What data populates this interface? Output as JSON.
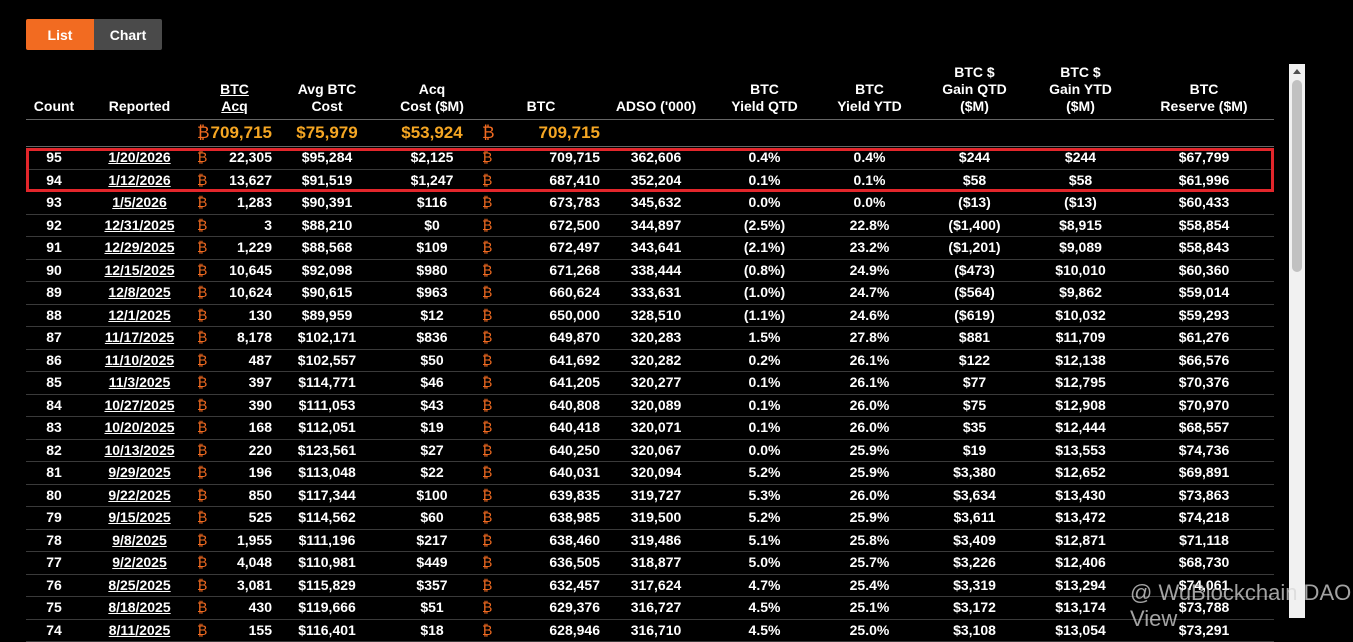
{
  "tabs": {
    "list_label": "List",
    "chart_label": "Chart",
    "active": "List"
  },
  "columns": [
    {
      "key": "count",
      "label": [
        "Count"
      ]
    },
    {
      "key": "reported",
      "label": [
        "Reported"
      ]
    },
    {
      "key": "btc_acq",
      "label": [
        "BTC",
        "Acq"
      ]
    },
    {
      "key": "avg_cost",
      "label": [
        "Avg BTC",
        "Cost"
      ]
    },
    {
      "key": "acq_cost",
      "label": [
        "Acq",
        "Cost ($M)"
      ]
    },
    {
      "key": "btc",
      "label": [
        "BTC"
      ]
    },
    {
      "key": "adso",
      "label": [
        "ADSO ('000)"
      ]
    },
    {
      "key": "yield_qtd",
      "label": [
        "BTC",
        "Yield QTD"
      ]
    },
    {
      "key": "yield_ytd",
      "label": [
        "BTC",
        "Yield YTD"
      ]
    },
    {
      "key": "gain_qtd",
      "label": [
        "BTC $",
        "Gain QTD",
        "($M)"
      ]
    },
    {
      "key": "gain_ytd",
      "label": [
        "BTC $",
        "Gain YTD",
        "($M)"
      ]
    },
    {
      "key": "reserve",
      "label": [
        "BTC",
        "Reserve ($M)"
      ]
    }
  ],
  "btc_symbol": "₿",
  "totals": {
    "btc_acq": "709,715",
    "avg_cost": "$75,979",
    "acq_cost": "$53,924",
    "btc": "709,715"
  },
  "rows": [
    [
      "95",
      "1/20/2026",
      "22,305",
      "$95,284",
      "$2,125",
      "709,715",
      "362,606",
      "0.4%",
      "0.4%",
      "$244",
      "$244",
      "$67,799"
    ],
    [
      "94",
      "1/12/2026",
      "13,627",
      "$91,519",
      "$1,247",
      "687,410",
      "352,204",
      "0.1%",
      "0.1%",
      "$58",
      "$58",
      "$61,996"
    ],
    [
      "93",
      "1/5/2026",
      "1,283",
      "$90,391",
      "$116",
      "673,783",
      "345,632",
      "0.0%",
      "0.0%",
      "($13)",
      "($13)",
      "$60,433"
    ],
    [
      "92",
      "12/31/2025",
      "3",
      "$88,210",
      "$0",
      "672,500",
      "344,897",
      "(2.5%)",
      "22.8%",
      "($1,400)",
      "$8,915",
      "$58,854"
    ],
    [
      "91",
      "12/29/2025",
      "1,229",
      "$88,568",
      "$109",
      "672,497",
      "343,641",
      "(2.1%)",
      "23.2%",
      "($1,201)",
      "$9,089",
      "$58,843"
    ],
    [
      "90",
      "12/15/2025",
      "10,645",
      "$92,098",
      "$980",
      "671,268",
      "338,444",
      "(0.8%)",
      "24.9%",
      "($473)",
      "$10,010",
      "$60,360"
    ],
    [
      "89",
      "12/8/2025",
      "10,624",
      "$90,615",
      "$963",
      "660,624",
      "333,631",
      "(1.0%)",
      "24.7%",
      "($564)",
      "$9,862",
      "$59,014"
    ],
    [
      "88",
      "12/1/2025",
      "130",
      "$89,959",
      "$12",
      "650,000",
      "328,510",
      "(1.1%)",
      "24.6%",
      "($619)",
      "$10,032",
      "$59,293"
    ],
    [
      "87",
      "11/17/2025",
      "8,178",
      "$102,171",
      "$836",
      "649,870",
      "320,283",
      "1.5%",
      "27.8%",
      "$881",
      "$11,709",
      "$61,276"
    ],
    [
      "86",
      "11/10/2025",
      "487",
      "$102,557",
      "$50",
      "641,692",
      "320,282",
      "0.2%",
      "26.1%",
      "$122",
      "$12,138",
      "$66,576"
    ],
    [
      "85",
      "11/3/2025",
      "397",
      "$114,771",
      "$46",
      "641,205",
      "320,277",
      "0.1%",
      "26.1%",
      "$77",
      "$12,795",
      "$70,376"
    ],
    [
      "84",
      "10/27/2025",
      "390",
      "$111,053",
      "$43",
      "640,808",
      "320,089",
      "0.1%",
      "26.0%",
      "$75",
      "$12,908",
      "$70,970"
    ],
    [
      "83",
      "10/20/2025",
      "168",
      "$112,051",
      "$19",
      "640,418",
      "320,071",
      "0.1%",
      "26.0%",
      "$35",
      "$12,444",
      "$68,557"
    ],
    [
      "82",
      "10/13/2025",
      "220",
      "$123,561",
      "$27",
      "640,250",
      "320,067",
      "0.0%",
      "25.9%",
      "$19",
      "$13,553",
      "$74,736"
    ],
    [
      "81",
      "9/29/2025",
      "196",
      "$113,048",
      "$22",
      "640,031",
      "320,094",
      "5.2%",
      "25.9%",
      "$3,380",
      "$12,652",
      "$69,891"
    ],
    [
      "80",
      "9/22/2025",
      "850",
      "$117,344",
      "$100",
      "639,835",
      "319,727",
      "5.3%",
      "26.0%",
      "$3,634",
      "$13,430",
      "$73,863"
    ],
    [
      "79",
      "9/15/2025",
      "525",
      "$114,562",
      "$60",
      "638,985",
      "319,500",
      "5.2%",
      "25.9%",
      "$3,611",
      "$13,472",
      "$74,218"
    ],
    [
      "78",
      "9/8/2025",
      "1,955",
      "$111,196",
      "$217",
      "638,460",
      "319,486",
      "5.1%",
      "25.8%",
      "$3,409",
      "$12,871",
      "$71,118"
    ],
    [
      "77",
      "9/2/2025",
      "4,048",
      "$110,981",
      "$449",
      "636,505",
      "318,877",
      "5.0%",
      "25.7%",
      "$3,226",
      "$12,406",
      "$68,730"
    ],
    [
      "76",
      "8/25/2025",
      "3,081",
      "$115,829",
      "$357",
      "632,457",
      "317,624",
      "4.7%",
      "25.4%",
      "$3,319",
      "$13,294",
      "$74,061"
    ],
    [
      "75",
      "8/18/2025",
      "430",
      "$119,666",
      "$51",
      "629,376",
      "316,727",
      "4.5%",
      "25.1%",
      "$3,172",
      "$13,174",
      "$73,788"
    ],
    [
      "74",
      "8/11/2025",
      "155",
      "$116,401",
      "$18",
      "628,946",
      "316,710",
      "4.5%",
      "25.0%",
      "$3,108",
      "$13,054",
      "$73,291"
    ]
  ],
  "watermark": "@ WuBlockchain DAO View",
  "highlight_color": "#e3262b",
  "accent_color": "#f26b21",
  "totals_color": "#f5a623"
}
